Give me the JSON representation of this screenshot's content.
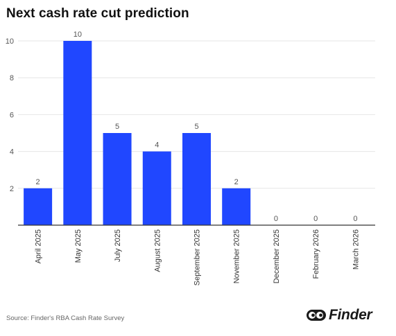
{
  "title": "Next cash rate cut prediction",
  "source": "Source: Finder's RBA Cash Rate Survey",
  "brand": {
    "name": "Finder",
    "logo_icon": "finder-eyes-logo"
  },
  "colors": {
    "bar": "#2047FF",
    "grid": "#e6e6e6",
    "axis": "#333333",
    "tick_text": "#555555"
  },
  "chart_data": {
    "type": "bar",
    "title": "Next cash rate cut prediction",
    "xlabel": "",
    "ylabel": "",
    "categories": [
      "April 2025",
      "May 2025",
      "July 2025",
      "August 2025",
      "September 2025",
      "November 2025",
      "December 2025",
      "February 2026",
      "March 2026"
    ],
    "values": [
      2,
      10,
      5,
      4,
      5,
      2,
      0,
      0,
      0
    ],
    "ylim": [
      0,
      10
    ],
    "yticks": [
      2,
      4,
      6,
      8,
      10
    ],
    "grid": true,
    "data_labels": true,
    "legend": "none"
  }
}
